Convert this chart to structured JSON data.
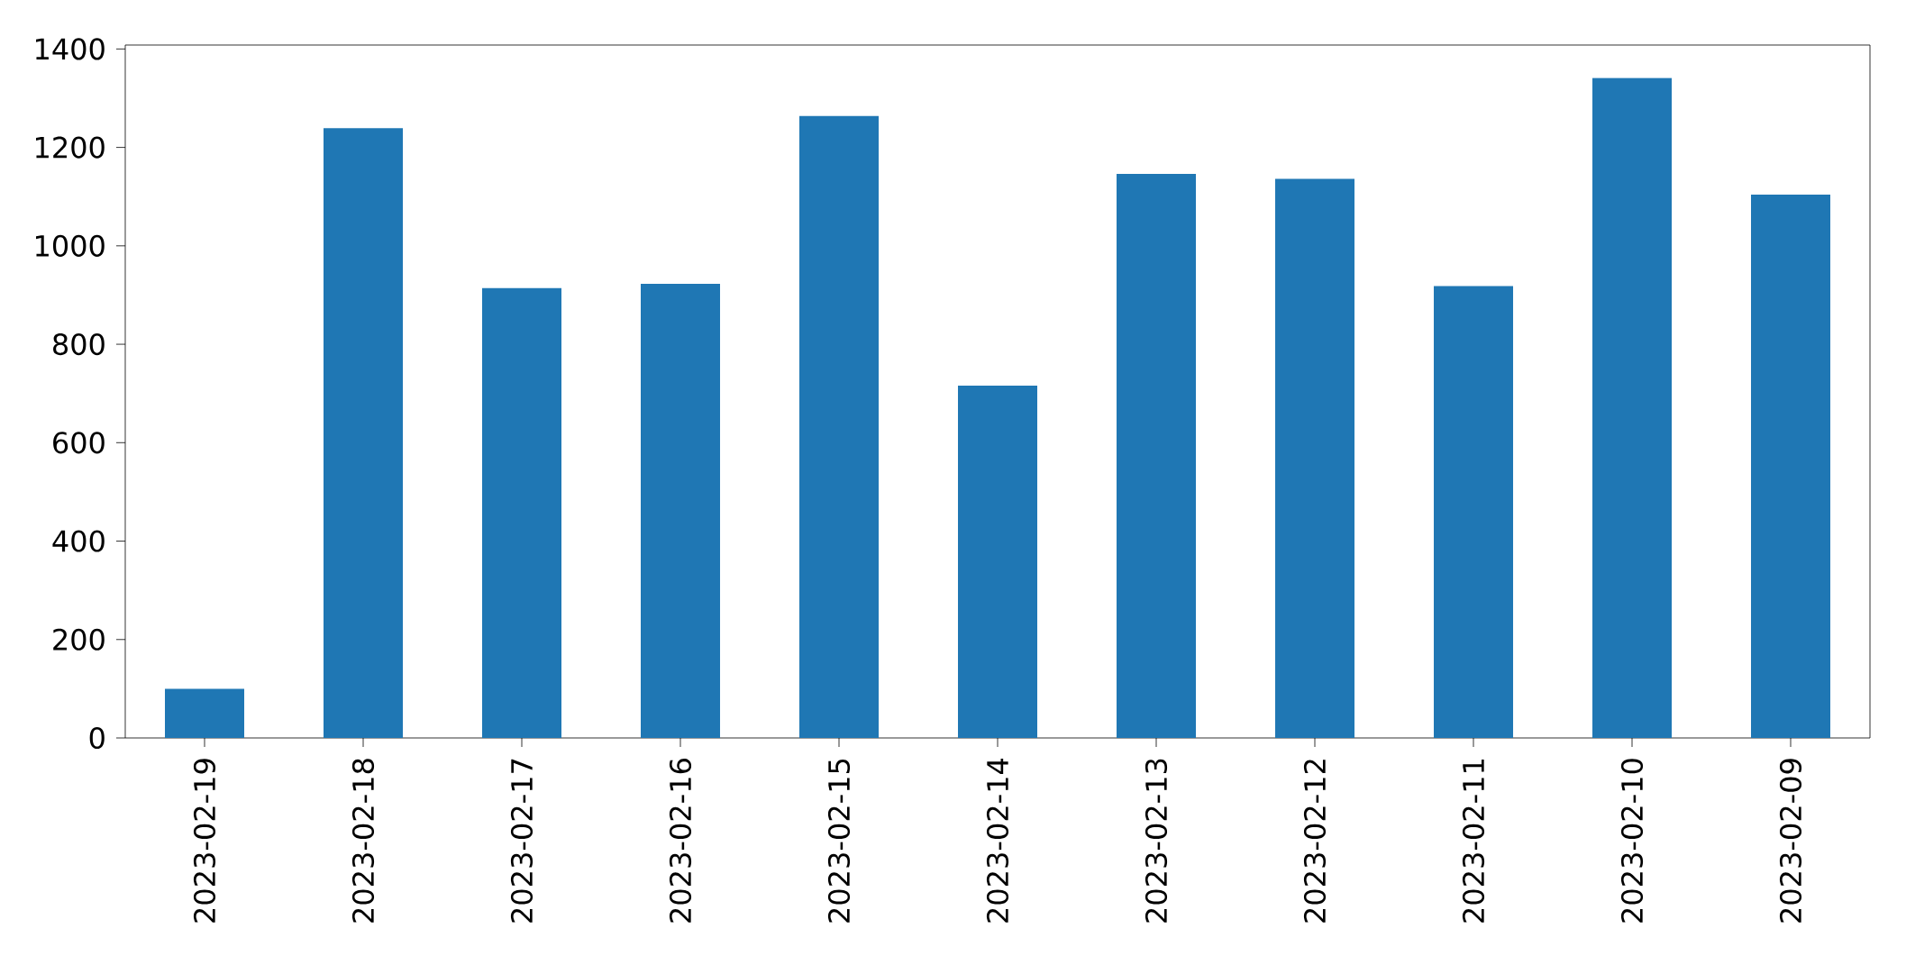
{
  "chart_data": {
    "type": "bar",
    "categories": [
      "2023-02-19",
      "2023-02-18",
      "2023-02-17",
      "2023-02-16",
      "2023-02-15",
      "2023-02-14",
      "2023-02-13",
      "2023-02-12",
      "2023-02-11",
      "2023-02-10",
      "2023-02-09"
    ],
    "values": [
      100,
      1239,
      914,
      923,
      1264,
      716,
      1146,
      1136,
      918,
      1341,
      1104
    ],
    "color": "#1f77b4",
    "ylim": [
      0,
      1408
    ],
    "yticks": [
      0,
      200,
      400,
      600,
      800,
      1000,
      1200,
      1400
    ],
    "grid": false
  }
}
